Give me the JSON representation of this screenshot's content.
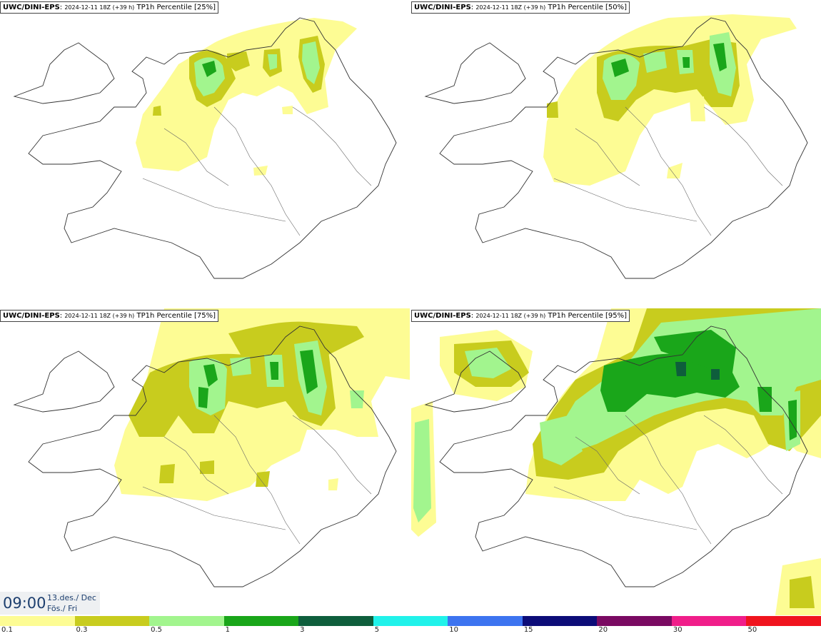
{
  "panels": [
    {
      "model": "UWC/DINI-EPS",
      "run": "2024-12-11 18Z (+39 h)",
      "field": "TP1h Percentile [25%]"
    },
    {
      "model": "UWC/DINI-EPS",
      "run": "2024-12-11 18Z (+39 h)",
      "field": "TP1h Percentile [50%]"
    },
    {
      "model": "UWC/DINI-EPS",
      "run": "2024-12-11 18Z (+39 h)",
      "field": "TP1h Percentile [75%]"
    },
    {
      "model": "UWC/DINI-EPS",
      "run": "2024-12-11 18Z (+39 h)",
      "field": "TP1h Percentile [95%]"
    }
  ],
  "valid_time": {
    "clock": "09:00",
    "date": "13.des./ Dec",
    "weekday": "Fös./ Fri"
  },
  "colorbar": {
    "colors": [
      "#fdfc94",
      "#c8cc1e",
      "#a2f58e",
      "#1aa61a",
      "#0e5e3c",
      "#21f2ea",
      "#3d74f0",
      "#0c0c78",
      "#7a0a62",
      "#f01e8a",
      "#f0141e"
    ],
    "ticks": [
      "0.1",
      "0.3",
      "0.5",
      "1",
      "3",
      "5",
      "10",
      "15",
      "20",
      "30",
      "50"
    ]
  },
  "fill_colors": {
    "yellow": "#fdfc94",
    "olive": "#c8cc1e",
    "lightgreen": "#a2f58e",
    "green": "#1aa61a",
    "dark": "#0e5e3c"
  }
}
